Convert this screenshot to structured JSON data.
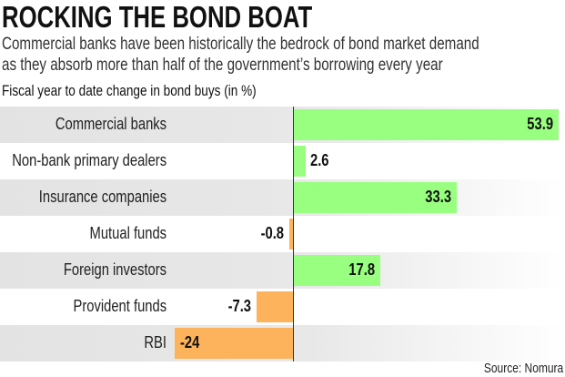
{
  "chart_data": {
    "type": "bar",
    "orientation": "horizontal",
    "title": "ROCKING THE BOND BOAT",
    "subtitle": [
      "Commercial banks have been historically the bedrock of bond market demand",
      "as they absorb more than half of the government’s borrowing every year"
    ],
    "ylabel": "Fiscal year to date change in bond buys (in %)",
    "categories": [
      "Commercial banks",
      "Non-bank primary dealers",
      "Insurance companies",
      "Mutual funds",
      "Foreign investors",
      "Provident funds",
      "RBI"
    ],
    "values": [
      53.9,
      2.6,
      33.3,
      -0.8,
      17.8,
      -7.3,
      -24
    ],
    "value_labels": [
      "53.9",
      "2.6",
      "33.3",
      "-0.8",
      "17.8",
      "-7.3",
      "-24"
    ],
    "xlim": [
      -24,
      54
    ],
    "source": "Source: Nomura",
    "colors": {
      "positive": "#99ff80",
      "negative": "#fdb35c"
    }
  }
}
